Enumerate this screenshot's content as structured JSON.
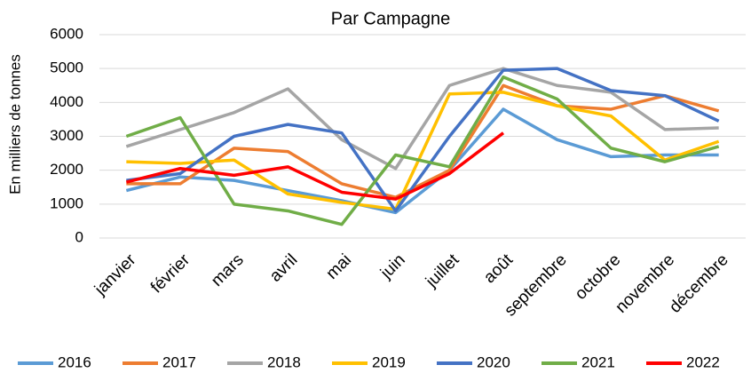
{
  "chart_data": {
    "type": "line",
    "title": "Par Campagne",
    "y_label": "En milliers de tonnes",
    "categories": [
      "janvier",
      "février",
      "mars",
      "avril",
      "mai",
      "juin",
      "juillet",
      "août",
      "septembre",
      "octobre",
      "novembre",
      "décembre"
    ],
    "series": [
      {
        "name": "2016",
        "color": "#5b9bd5",
        "values": [
          1400,
          1800,
          1700,
          1400,
          1100,
          750,
          2000,
          3800,
          2900,
          2400,
          2450,
          2450
        ]
      },
      {
        "name": "2017",
        "color": "#ed7d31",
        "values": [
          1600,
          1600,
          2650,
          2550,
          1600,
          1200,
          2000,
          4500,
          3900,
          3800,
          4200,
          3750
        ]
      },
      {
        "name": "2018",
        "color": "#a5a5a5",
        "values": [
          2700,
          3200,
          3700,
          4400,
          2900,
          2050,
          4500,
          5000,
          4500,
          4300,
          3200,
          3250
        ]
      },
      {
        "name": "2019",
        "color": "#ffc000",
        "values": [
          2250,
          2200,
          2300,
          1300,
          1050,
          850,
          4250,
          4300,
          3900,
          3600,
          2300,
          2850
        ]
      },
      {
        "name": "2020",
        "color": "#4472c4",
        "values": [
          1700,
          1900,
          3000,
          3350,
          3100,
          800,
          3000,
          4950,
          5000,
          4350,
          4200,
          3450
        ]
      },
      {
        "name": "2021",
        "color": "#70ad47",
        "values": [
          3000,
          3550,
          1000,
          800,
          400,
          2450,
          2100,
          4750,
          4100,
          2650,
          2250,
          2700
        ]
      },
      {
        "name": "2022",
        "color": "#ff0000",
        "values": [
          1650,
          2050,
          1850,
          2100,
          1350,
          1150,
          1900,
          3100,
          null,
          null,
          null,
          null
        ]
      }
    ],
    "ylim": [
      0,
      6000
    ],
    "yticks": [
      0,
      1000,
      2000,
      3000,
      4000,
      5000,
      6000
    ],
    "grid": true,
    "legend": "bottom"
  }
}
